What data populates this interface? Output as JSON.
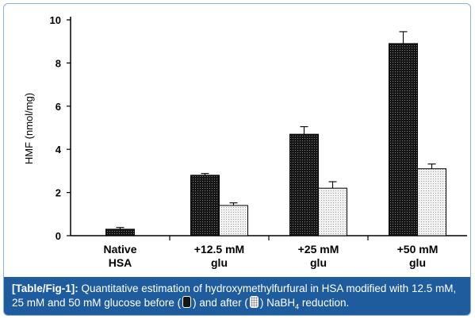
{
  "chart_data": {
    "type": "bar",
    "categories": [
      [
        "Native",
        "HSA"
      ],
      [
        "+12.5 mM",
        "glu"
      ],
      [
        "+25 mM",
        "glu"
      ],
      [
        "+50 mM",
        "glu"
      ]
    ],
    "series": [
      {
        "values": [
          0.3,
          2.8,
          4.7,
          8.9
        ],
        "errors": [
          0.08,
          0.08,
          0.35,
          0.55
        ],
        "pattern": "dark-dotted"
      },
      {
        "values": [
          null,
          1.4,
          2.2,
          3.1
        ],
        "errors": [
          null,
          0.12,
          0.3,
          0.22
        ],
        "pattern": "light-dotted"
      }
    ],
    "ylabel": "HMF (nmol/mg)",
    "xlabel": "",
    "ylim": [
      0,
      10
    ],
    "yticks": [
      "0",
      "2",
      "4",
      "6",
      "8",
      "10"
    ],
    "grid": false
  },
  "caption": {
    "label": "[Table/Fig-1]:",
    "text_part1": " Quantitative estimation of hydroxymethylfurfural in HSA modified with 12.5 mM, 25 mM and 50 mM glucose before (",
    "text_part2": ") and after (",
    "text_part3": ") NaBH",
    "subscript": "4",
    "text_part4": " reduction."
  },
  "colors": {
    "caption_bg": "#1f5c9e",
    "frame_border": "#8fb0cf",
    "dark_bar": "#151515",
    "light_bar": "#eaeaea"
  }
}
